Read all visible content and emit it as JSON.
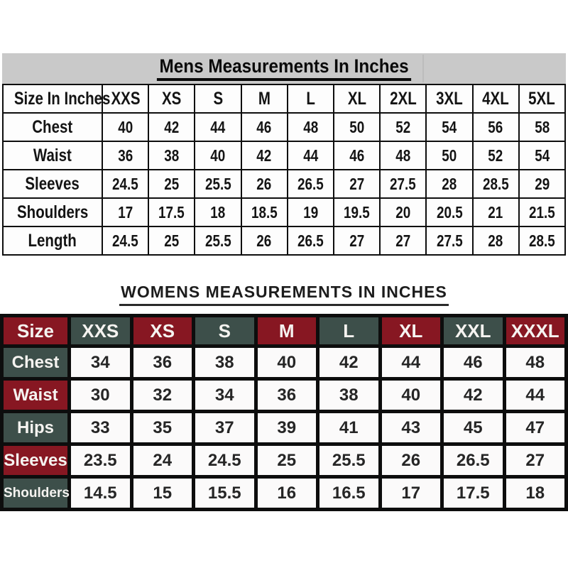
{
  "page": {
    "background": "#ffffff"
  },
  "colors": {
    "maroon": "#871722",
    "teal": "#3d4f4a",
    "mens_band_gray": "#c9c9c9",
    "grid_black": "#0d0d0d"
  },
  "chart_data": [
    {
      "type": "table",
      "title": "Mens Measurements In Inches",
      "columns": [
        "Size In Inches",
        "XXS",
        "XS",
        "S",
        "M",
        "L",
        "XL",
        "2XL",
        "3XL",
        "4XL",
        "5XL"
      ],
      "rows": [
        {
          "label": "Chest",
          "values": [
            "40",
            "42",
            "44",
            "46",
            "48",
            "50",
            "52",
            "54",
            "56",
            "58"
          ]
        },
        {
          "label": "Waist",
          "values": [
            "36",
            "38",
            "40",
            "42",
            "44",
            "46",
            "48",
            "50",
            "52",
            "54"
          ]
        },
        {
          "label": "Sleeves",
          "values": [
            "24.5",
            "25",
            "25.5",
            "26",
            "26.5",
            "27",
            "27.5",
            "28",
            "28.5",
            "29"
          ]
        },
        {
          "label": "Shoulders",
          "values": [
            "17",
            "17.5",
            "18",
            "18.5",
            "19",
            "19.5",
            "20",
            "20.5",
            "21",
            "21.5"
          ]
        },
        {
          "label": "Length",
          "values": [
            "24.5",
            "25",
            "25.5",
            "26",
            "26.5",
            "27",
            "27",
            "27.5",
            "28",
            "28.5"
          ]
        }
      ]
    },
    {
      "type": "table",
      "title": "WOMENS MEASUREMENTS IN INCHES",
      "columns": [
        "Size",
        "XXS",
        "XS",
        "S",
        "M",
        "L",
        "XL",
        "XXL",
        "XXXL"
      ],
      "column_colors": [
        "maroon",
        "teal",
        "maroon",
        "teal",
        "maroon",
        "teal",
        "maroon",
        "teal",
        "maroon"
      ],
      "rows": [
        {
          "label": "Chest",
          "label_color": "teal",
          "values": [
            "34",
            "36",
            "38",
            "40",
            "42",
            "44",
            "46",
            "48"
          ]
        },
        {
          "label": "Waist",
          "label_color": "maroon",
          "values": [
            "30",
            "32",
            "34",
            "36",
            "38",
            "40",
            "42",
            "44"
          ]
        },
        {
          "label": "Hips",
          "label_color": "teal",
          "values": [
            "33",
            "35",
            "37",
            "39",
            "41",
            "43",
            "45",
            "47"
          ]
        },
        {
          "label": "Sleeves",
          "label_color": "maroon",
          "values": [
            "23.5",
            "24",
            "24.5",
            "25",
            "25.5",
            "26",
            "26.5",
            "27"
          ]
        },
        {
          "label": "Shoulders",
          "label_color": "teal",
          "values": [
            "14.5",
            "15",
            "15.5",
            "16",
            "16.5",
            "17",
            "17.5",
            "18"
          ]
        }
      ]
    }
  ]
}
